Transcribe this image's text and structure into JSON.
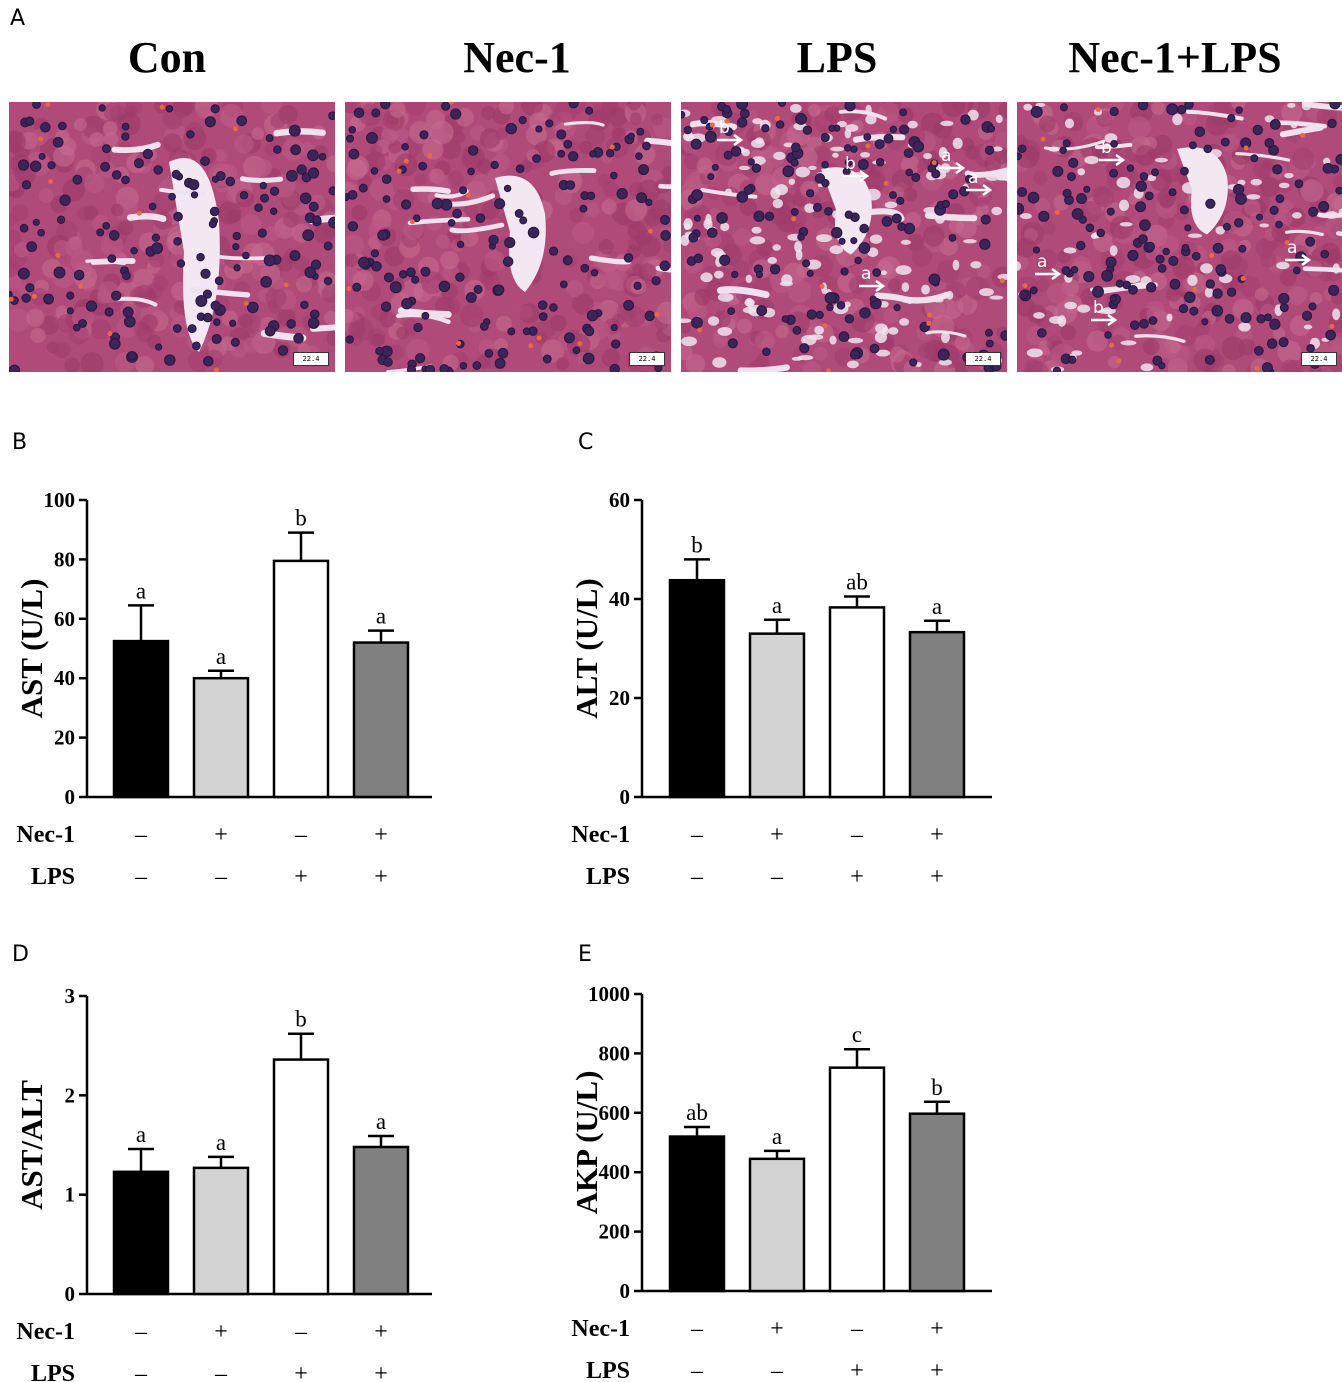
{
  "panel_a": {
    "letter": "A",
    "images": [
      {
        "title": "Con",
        "scale": "22.4",
        "arrows": []
      },
      {
        "title": "Nec-1",
        "scale": "22.4",
        "arrows": []
      },
      {
        "title": "LPS",
        "scale": "22.4",
        "arrows": [
          "b",
          "b",
          "a",
          "a",
          "a"
        ]
      },
      {
        "title": "Nec-1+LPS",
        "scale": "22.4",
        "arrows": [
          "b",
          "a",
          "a",
          "b"
        ]
      }
    ]
  },
  "chart_data": [
    {
      "panel": "B",
      "type": "bar",
      "ylabel": "AST (U/L)",
      "ylim": [
        0,
        100
      ],
      "yticks": [
        0,
        20,
        40,
        60,
        80,
        100
      ],
      "values": [
        52.5,
        40,
        79.5,
        52
      ],
      "errors": [
        12,
        2.5,
        9.5,
        4
      ],
      "letters": [
        "a",
        "a",
        "b",
        "a"
      ],
      "fills": [
        "#000000",
        "#d3d3d3",
        "#ffffff",
        "#808080"
      ],
      "factors": [
        {
          "name": "Nec-1",
          "signs": [
            "–",
            "+",
            "–",
            "+"
          ]
        },
        {
          "name": "LPS",
          "signs": [
            "–",
            "–",
            "+",
            "+"
          ]
        }
      ]
    },
    {
      "panel": "C",
      "type": "bar",
      "ylabel": "ALT (U/L)",
      "ylim": [
        0,
        60
      ],
      "yticks": [
        0,
        20,
        40,
        60
      ],
      "values": [
        43.8,
        33,
        38.3,
        33.3
      ],
      "errors": [
        4.2,
        2.8,
        2.2,
        2.3
      ],
      "letters": [
        "b",
        "a",
        "ab",
        "a"
      ],
      "fills": [
        "#000000",
        "#d3d3d3",
        "#ffffff",
        "#808080"
      ],
      "factors": [
        {
          "name": "Nec-1",
          "signs": [
            "–",
            "+",
            "–",
            "+"
          ]
        },
        {
          "name": "LPS",
          "signs": [
            "–",
            "–",
            "+",
            "+"
          ]
        }
      ]
    },
    {
      "panel": "D",
      "type": "bar",
      "ylabel": "AST/ALT",
      "ylim": [
        0,
        3
      ],
      "yticks": [
        0,
        1,
        2,
        3
      ],
      "values": [
        1.23,
        1.27,
        2.36,
        1.48
      ],
      "errors": [
        0.23,
        0.11,
        0.26,
        0.11
      ],
      "letters": [
        "a",
        "a",
        "b",
        "a"
      ],
      "fills": [
        "#000000",
        "#d3d3d3",
        "#ffffff",
        "#808080"
      ],
      "factors": [
        {
          "name": "Nec-1",
          "signs": [
            "–",
            "+",
            "–",
            "+"
          ]
        },
        {
          "name": "LPS",
          "signs": [
            "–",
            "–",
            "+",
            "+"
          ]
        }
      ]
    },
    {
      "panel": "E",
      "type": "bar",
      "ylabel": "AKP (U/L)",
      "ylim": [
        0,
        1000
      ],
      "yticks": [
        0,
        200,
        400,
        600,
        800,
        1000
      ],
      "values": [
        520,
        445,
        752,
        597
      ],
      "errors": [
        32,
        27,
        62,
        40
      ],
      "letters": [
        "ab",
        "a",
        "c",
        "b"
      ],
      "fills": [
        "#000000",
        "#d3d3d3",
        "#ffffff",
        "#808080"
      ],
      "factors": [
        {
          "name": "Nec-1",
          "signs": [
            "–",
            "+",
            "–",
            "+"
          ]
        },
        {
          "name": "LPS",
          "signs": [
            "–",
            "–",
            "+",
            "+"
          ]
        }
      ]
    }
  ]
}
